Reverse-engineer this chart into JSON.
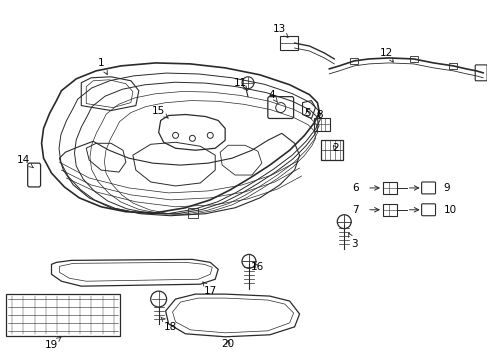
{
  "bg_color": "#ffffff",
  "fig_width": 4.89,
  "fig_height": 3.6,
  "dpi": 100,
  "line_color": "#2a2a2a",
  "label_fontsize": 7.5
}
